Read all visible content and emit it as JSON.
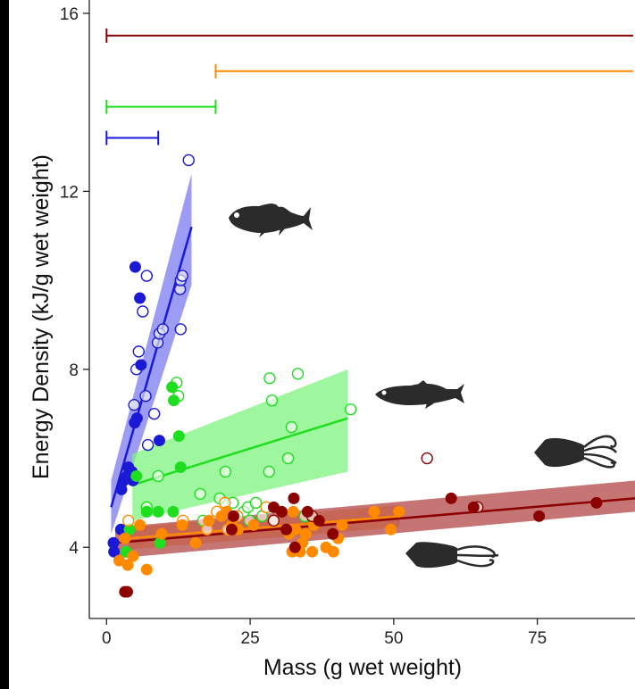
{
  "chart_data": {
    "type": "scatter",
    "xlabel": "Mass (g wet weight)",
    "ylabel": "Energy Density (kJ/g wet weight)",
    "xlim": [
      -3,
      92
    ],
    "ylim": [
      2.4,
      16.3
    ],
    "x_ticks": [
      0,
      25,
      50,
      75
    ],
    "y_ticks": [
      4,
      8,
      12,
      16
    ],
    "x_tick_labels": [
      "0",
      "25",
      "50",
      "75"
    ],
    "y_tick_labels": [
      "4",
      "8",
      "12",
      "16"
    ],
    "grid": false,
    "legend": "none",
    "series": [
      {
        "color": "#1a1ad6",
        "band_color": "#7b7bf0",
        "size_range": [
          0,
          9
        ],
        "size_range_y": 13.2,
        "fit": {
          "x": [
            0.8,
            14.8
          ],
          "y": [
            4.9,
            11.2
          ],
          "band_lo": [
            4.3,
            9.9
          ],
          "band_hi": [
            5.5,
            12.4
          ]
        },
        "filled": [
          [
            1.2,
            4.1
          ],
          [
            1.3,
            3.9
          ],
          [
            2.5,
            4.4
          ],
          [
            2.6,
            5.3
          ],
          [
            3.0,
            5.5
          ],
          [
            3.6,
            5.6
          ],
          [
            3.8,
            5.8
          ],
          [
            4.4,
            5.7
          ],
          [
            4.6,
            5.5
          ],
          [
            4.9,
            6.8
          ],
          [
            5.3,
            6.9
          ],
          [
            5.0,
            10.3
          ],
          [
            5.8,
            9.6
          ],
          [
            6.0,
            8.1
          ],
          [
            9.2,
            6.4
          ]
        ],
        "open": [
          [
            4.8,
            7.2
          ],
          [
            5.2,
            8.0
          ],
          [
            5.6,
            8.4
          ],
          [
            6.3,
            9.3
          ],
          [
            7.0,
            10.1
          ],
          [
            7.2,
            6.3
          ],
          [
            8.3,
            7.0
          ],
          [
            8.9,
            8.6
          ],
          [
            9.2,
            8.8
          ],
          [
            9.8,
            8.9
          ],
          [
            12.8,
            9.8
          ],
          [
            12.9,
            10.0
          ],
          [
            13.2,
            10.1
          ],
          [
            12.9,
            8.9
          ],
          [
            14.3,
            12.7
          ],
          [
            6.8,
            7.4
          ]
        ]
      },
      {
        "color": "#1fdd1f",
        "band_color": "#7ef47e",
        "size_range": [
          0,
          19
        ],
        "size_range_y": 13.9,
        "fit": {
          "x": [
            4.5,
            42.0
          ],
          "y": [
            5.4,
            6.9
          ],
          "band_lo": [
            4.6,
            5.7
          ],
          "band_hi": [
            6.1,
            8.0
          ]
        },
        "filled": [
          [
            3.4,
            3.9
          ],
          [
            4.0,
            4.4
          ],
          [
            5.2,
            5.6
          ],
          [
            7.0,
            4.8
          ],
          [
            9.0,
            4.8
          ],
          [
            9.3,
            4.1
          ],
          [
            11.4,
            7.6
          ],
          [
            11.7,
            7.3
          ],
          [
            12.6,
            6.5
          ],
          [
            12.9,
            5.8
          ],
          [
            11.6,
            4.8
          ]
        ],
        "open": [
          [
            7.0,
            4.9
          ],
          [
            9.0,
            5.6
          ],
          [
            12.2,
            7.7
          ],
          [
            12.5,
            7.4
          ],
          [
            16.3,
            5.2
          ],
          [
            16.8,
            4.6
          ],
          [
            19.7,
            5.1
          ],
          [
            20.7,
            5.7
          ],
          [
            22.0,
            5.0
          ],
          [
            23.9,
            4.8
          ],
          [
            24.6,
            4.9
          ],
          [
            24.9,
            4.6
          ],
          [
            26.0,
            5.0
          ],
          [
            27.1,
            4.7
          ],
          [
            28.3,
            5.7
          ],
          [
            28.4,
            7.8
          ],
          [
            28.8,
            7.3
          ],
          [
            31.6,
            6.0
          ],
          [
            32.2,
            6.7
          ],
          [
            33.3,
            7.9
          ],
          [
            42.5,
            7.1
          ],
          [
            34.5,
            4.7
          ]
        ]
      },
      {
        "color": "#ff8a00",
        "band_color": "#ffb255",
        "size_range": [
          19,
          92
        ],
        "size_range_y": 14.7,
        "fit": {
          "x": [
            3.8,
            51.0
          ],
          "y": [
            4.2,
            4.7
          ],
          "band_lo": [
            3.95,
            4.45
          ],
          "band_hi": [
            4.45,
            4.95
          ]
        },
        "filled": [
          [
            2.2,
            3.7
          ],
          [
            3.2,
            4.2
          ],
          [
            3.7,
            3.6
          ],
          [
            4.6,
            3.8
          ],
          [
            5.8,
            4.5
          ],
          [
            7.0,
            3.5
          ],
          [
            9.6,
            4.3
          ],
          [
            13.2,
            4.5
          ],
          [
            15.5,
            4.1
          ],
          [
            17.8,
            4.6
          ],
          [
            20.0,
            4.7
          ],
          [
            20.9,
            4.8
          ],
          [
            21.8,
            4.5
          ],
          [
            22.9,
            4.4
          ],
          [
            25.6,
            4.5
          ],
          [
            31.8,
            4.3
          ],
          [
            32.3,
            3.9
          ],
          [
            32.5,
            4.8
          ],
          [
            32.9,
            4.4
          ],
          [
            33.7,
            3.9
          ],
          [
            34.1,
            4.1
          ],
          [
            34.7,
            4.3
          ],
          [
            35.8,
            3.9
          ],
          [
            36.1,
            4.5
          ],
          [
            38.2,
            4.0
          ],
          [
            39.5,
            3.9
          ],
          [
            40.3,
            4.2
          ],
          [
            46.6,
            4.8
          ],
          [
            49.5,
            4.4
          ],
          [
            50.9,
            4.8
          ],
          [
            41.0,
            4.5
          ]
        ],
        "open": [
          [
            13.3,
            4.6
          ],
          [
            17.5,
            4.4
          ],
          [
            19.2,
            4.8
          ],
          [
            20.6,
            5.0
          ],
          [
            21.1,
            4.4
          ],
          [
            22.8,
            4.7
          ],
          [
            27.8,
            4.9
          ],
          [
            29.2,
            4.6
          ],
          [
            3.8,
            4.6
          ]
        ]
      },
      {
        "color": "#8b0000",
        "band_color": "#b34747",
        "size_range": [
          0,
          92
        ],
        "size_range_y": 15.5,
        "fit": {
          "x": [
            1.5,
            92.0
          ],
          "y": [
            4.1,
            5.1
          ],
          "band_lo": [
            3.75,
            4.8
          ],
          "band_hi": [
            4.45,
            5.5
          ]
        },
        "filled": [
          [
            3.2,
            3.0
          ],
          [
            3.6,
            3.0
          ],
          [
            22.1,
            4.7
          ],
          [
            29.1,
            4.9
          ],
          [
            30.5,
            4.8
          ],
          [
            31.3,
            4.4
          ],
          [
            32.6,
            5.1
          ],
          [
            32.8,
            4.0
          ],
          [
            35.0,
            4.8
          ],
          [
            37.0,
            4.6
          ],
          [
            39.4,
            4.3
          ],
          [
            60.0,
            5.1
          ],
          [
            63.9,
            4.9
          ],
          [
            75.3,
            4.7
          ],
          [
            85.3,
            5.0
          ],
          [
            21.8,
            4.4
          ]
        ],
        "open": [
          [
            55.8,
            6.0
          ],
          [
            64.6,
            4.9
          ],
          [
            35.8,
            4.7
          ],
          [
            29.1,
            4.6
          ]
        ]
      }
    ]
  }
}
